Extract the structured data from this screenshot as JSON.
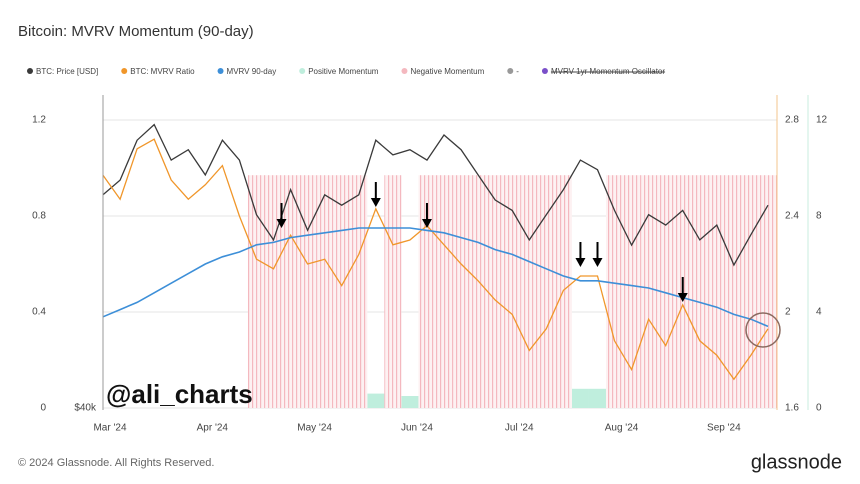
{
  "chart_data": {
    "type": "line",
    "title": "Bitcoin: MVRV Momentum (90-day)",
    "watermark": "@ali_charts",
    "footer": "© 2024 Glassnode. All Rights Reserved.",
    "logo": "glassnode",
    "categories": [
      "Mar '24",
      null,
      null,
      null,
      null,
      null,
      "Apr '24",
      null,
      null,
      null,
      null,
      null,
      "May '24",
      null,
      null,
      null,
      null,
      null,
      "Jun '24",
      null,
      null,
      null,
      null,
      null,
      "Jul '24",
      null,
      null,
      null,
      null,
      null,
      "Aug '24",
      null,
      null,
      null,
      null,
      null,
      "Sep '24",
      null,
      null,
      null
    ],
    "ylim": [
      0,
      1.3
    ],
    "yticks": [
      0,
      0.4,
      0.8,
      1.2
    ],
    "y2lim": [
      1.6,
      2.9
    ],
    "y2ticks": [
      1.6,
      2,
      2.4,
      2.8
    ],
    "y3lim": [
      0,
      13
    ],
    "y3ticks": [
      0,
      4,
      8,
      12
    ],
    "pricelim": [
      40000,
      76000
    ],
    "priceticks": [
      {
        "value": 40000,
        "label": "$40k"
      }
    ],
    "grid": true,
    "series": [
      {
        "name": "BTC: Price [USD]",
        "color": "#3a3a3a",
        "kind": "line",
        "axis": "price",
        "values": [
          64600,
          66300,
          70900,
          72700,
          68600,
          69800,
          66900,
          70900,
          68600,
          62300,
          59400,
          65200,
          60500,
          64600,
          63400,
          64600,
          70900,
          69200,
          69800,
          68600,
          71500,
          69800,
          66900,
          64000,
          62800,
          59400,
          62300,
          65200,
          68600,
          67500,
          62800,
          58800,
          62300,
          61100,
          62800,
          59400,
          61100,
          56500,
          60000,
          63400
        ]
      },
      {
        "name": "BTC: MVRV Ratio",
        "color": "#f0962a",
        "kind": "line",
        "axis": "y2",
        "values": [
          2.57,
          2.47,
          2.68,
          2.72,
          2.55,
          2.47,
          2.53,
          2.61,
          2.4,
          2.22,
          2.18,
          2.32,
          2.2,
          2.22,
          2.11,
          2.24,
          2.43,
          2.28,
          2.3,
          2.36,
          2.28,
          2.2,
          2.13,
          2.05,
          1.99,
          1.84,
          1.93,
          2.09,
          2.15,
          2.15,
          1.88,
          1.76,
          1.97,
          1.86,
          2.03,
          1.88,
          1.82,
          1.72,
          1.82,
          1.93
        ]
      },
      {
        "name": "MVRV 90-day",
        "color": "#3d8fd8",
        "kind": "line",
        "axis": "y2",
        "values": [
          1.98,
          2.01,
          2.04,
          2.08,
          2.12,
          2.16,
          2.2,
          2.23,
          2.25,
          2.28,
          2.29,
          2.31,
          2.32,
          2.33,
          2.34,
          2.35,
          2.35,
          2.35,
          2.35,
          2.34,
          2.33,
          2.31,
          2.29,
          2.26,
          2.24,
          2.21,
          2.18,
          2.15,
          2.13,
          2.13,
          2.12,
          2.11,
          2.1,
          2.08,
          2.06,
          2.04,
          2.02,
          1.99,
          1.97,
          1.94
        ]
      },
      {
        "name": "Positive Momentum",
        "color": "#bfeedd",
        "kind": "bar",
        "values": [
          0,
          0,
          0,
          0,
          0,
          0,
          0,
          0,
          0,
          0,
          0,
          0,
          0,
          0,
          0,
          0,
          0.06,
          0,
          0.05,
          0,
          0,
          0,
          0,
          0,
          0,
          0,
          0,
          0,
          0.08,
          0.08,
          0,
          0,
          0,
          0,
          0,
          0,
          0,
          0,
          0,
          0
        ]
      },
      {
        "name": "Negative Momentum",
        "color": "#f4b8bf",
        "kind": "bar",
        "values": [
          0,
          0,
          0,
          0,
          0,
          0,
          0,
          0,
          0,
          0.97,
          0.97,
          0.97,
          0.97,
          0.97,
          0.97,
          0.97,
          0,
          0.97,
          0,
          0.97,
          0.97,
          0.97,
          0.97,
          0.97,
          0.97,
          0.97,
          0.97,
          0.97,
          0,
          0,
          0.97,
          0.97,
          0.97,
          0.97,
          0.97,
          0.97,
          0.97,
          0.97,
          0.97,
          0.97
        ]
      }
    ],
    "hidden_legend": [
      {
        "name": "-",
        "color": "#999999"
      },
      {
        "name": "MVRV 1yr Momentum Oscillator",
        "color": "#7a4fc9"
      }
    ]
  }
}
